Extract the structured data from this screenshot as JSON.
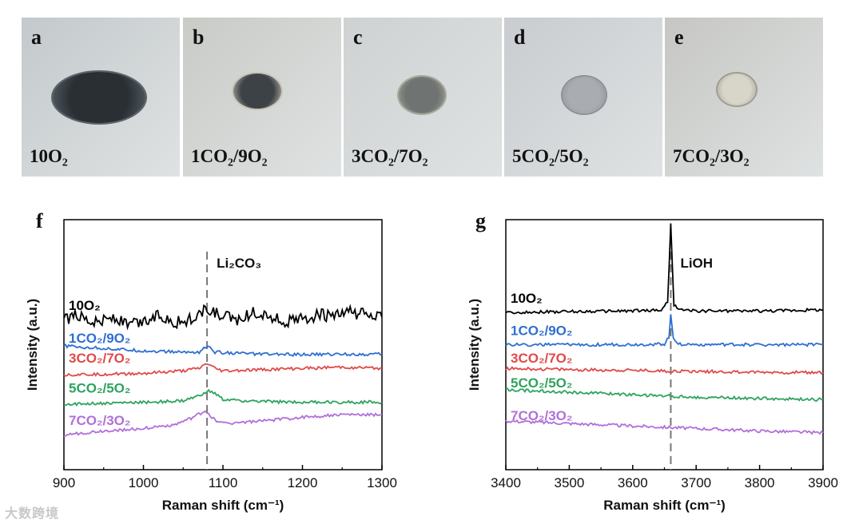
{
  "photos": [
    {
      "letter": "a",
      "condition": "10O₂",
      "bg": "#c3c9cc",
      "disc": "#2a2f33",
      "rim": "#58626a"
    },
    {
      "letter": "b",
      "condition": "1CO₂/9O₂",
      "bg": "#c8cbc6",
      "disc": "#3d4246",
      "rim": "#c9c6b8"
    },
    {
      "letter": "c",
      "condition": "3CO₂/7O₂",
      "bg": "#cfd2d2",
      "disc": "#6f7472",
      "rim": "#a8a99a"
    },
    {
      "letter": "d",
      "condition": "5CO₂/5O₂",
      "bg": "#c9ccd0",
      "disc": "#a9adb1",
      "rim": "#8c9196"
    },
    {
      "letter": "e",
      "condition": "7CO₂/3O₂",
      "bg": "#c6c7c4",
      "disc": "#d8d6c8",
      "rim": "#9e9d90"
    }
  ],
  "chart_data": [
    {
      "type": "line",
      "panel_label": "f",
      "xlabel": "Raman shift (cm⁻¹)",
      "ylabel": "Intensity (a.u.)",
      "xlim": [
        900,
        1300
      ],
      "xticks": [
        900,
        1000,
        1100,
        1200,
        1300
      ],
      "ylim": [
        0,
        10
      ],
      "reference_line": {
        "x": 1080,
        "label": "Li₂CO₃"
      },
      "series": [
        {
          "name": "10O₂",
          "color": "#000000",
          "baseline": 6.0,
          "points": [
            [
              900,
              6.0
            ],
            [
              920,
              6.2
            ],
            [
              940,
              5.9
            ],
            [
              960,
              6.1
            ],
            [
              980,
              5.8
            ],
            [
              1000,
              5.9
            ],
            [
              1020,
              6.2
            ],
            [
              1040,
              5.9
            ],
            [
              1060,
              6.0
            ],
            [
              1080,
              6.4
            ],
            [
              1100,
              6.1
            ],
            [
              1120,
              6.0
            ],
            [
              1140,
              6.3
            ],
            [
              1160,
              6.1
            ],
            [
              1180,
              5.9
            ],
            [
              1200,
              6.0
            ],
            [
              1220,
              6.2
            ],
            [
              1240,
              6.1
            ],
            [
              1260,
              6.3
            ],
            [
              1280,
              6.2
            ],
            [
              1300,
              6.1
            ]
          ]
        },
        {
          "name": "1CO₂/9O₂",
          "color": "#2f6fd1",
          "baseline": 4.7,
          "points": [
            [
              900,
              4.95
            ],
            [
              950,
              4.85
            ],
            [
              1000,
              4.75
            ],
            [
              1050,
              4.7
            ],
            [
              1070,
              4.7
            ],
            [
              1080,
              4.95
            ],
            [
              1090,
              4.7
            ],
            [
              1150,
              4.62
            ],
            [
              1200,
              4.6
            ],
            [
              1250,
              4.62
            ],
            [
              1300,
              4.62
            ]
          ]
        },
        {
          "name": "3CO₂/7O₂",
          "color": "#e04a4a",
          "baseline": 3.9,
          "points": [
            [
              900,
              3.8
            ],
            [
              950,
              3.82
            ],
            [
              1000,
              3.85
            ],
            [
              1050,
              3.95
            ],
            [
              1070,
              4.05
            ],
            [
              1080,
              4.25
            ],
            [
              1090,
              4.05
            ],
            [
              1100,
              3.95
            ],
            [
              1150,
              4.0
            ],
            [
              1200,
              4.05
            ],
            [
              1250,
              4.1
            ],
            [
              1300,
              4.05
            ]
          ]
        },
        {
          "name": "5CO₂/5O₂",
          "color": "#2ea35e",
          "baseline": 2.7,
          "points": [
            [
              900,
              2.62
            ],
            [
              950,
              2.65
            ],
            [
              1000,
              2.7
            ],
            [
              1050,
              2.75
            ],
            [
              1070,
              2.95
            ],
            [
              1080,
              3.15
            ],
            [
              1090,
              3.05
            ],
            [
              1100,
              2.8
            ],
            [
              1150,
              2.72
            ],
            [
              1200,
              2.7
            ],
            [
              1250,
              2.7
            ],
            [
              1300,
              2.7
            ]
          ]
        },
        {
          "name": "7CO₂/3O₂",
          "color": "#b070d8",
          "baseline": 1.4,
          "points": [
            [
              900,
              1.38
            ],
            [
              950,
              1.55
            ],
            [
              1000,
              1.65
            ],
            [
              1040,
              1.8
            ],
            [
              1060,
              2.05
            ],
            [
              1078,
              2.35
            ],
            [
              1090,
              2.0
            ],
            [
              1100,
              1.85
            ],
            [
              1150,
              1.95
            ],
            [
              1200,
              2.1
            ],
            [
              1250,
              2.2
            ],
            [
              1300,
              2.2
            ]
          ]
        }
      ]
    },
    {
      "type": "line",
      "panel_label": "g",
      "xlabel": "Raman shift (cm⁻¹)",
      "ylabel": "Intensity (a.u.)",
      "xlim": [
        3400,
        3900
      ],
      "xticks": [
        3400,
        3500,
        3600,
        3700,
        3800,
        3900
      ],
      "ylim": [
        0,
        10
      ],
      "reference_line": {
        "x": 3660,
        "label": "LiOH"
      },
      "series": [
        {
          "name": "10O₂",
          "color": "#000000",
          "baseline": 6.3,
          "points": [
            [
              3400,
              6.3
            ],
            [
              3500,
              6.32
            ],
            [
              3600,
              6.35
            ],
            [
              3645,
              6.38
            ],
            [
              3655,
              6.7
            ],
            [
              3660,
              9.8
            ],
            [
              3665,
              6.6
            ],
            [
              3675,
              6.38
            ],
            [
              3700,
              6.35
            ],
            [
              3800,
              6.35
            ],
            [
              3900,
              6.4
            ]
          ]
        },
        {
          "name": "1CO₂/9O₂",
          "color": "#2f6fd1",
          "baseline": 5.0,
          "points": [
            [
              3400,
              5.0
            ],
            [
              3500,
              5.0
            ],
            [
              3600,
              5.0
            ],
            [
              3650,
              5.02
            ],
            [
              3657,
              5.3
            ],
            [
              3660,
              6.2
            ],
            [
              3664,
              5.3
            ],
            [
              3672,
              5.02
            ],
            [
              3700,
              5.0
            ],
            [
              3800,
              5.0
            ],
            [
              3900,
              5.0
            ]
          ]
        },
        {
          "name": "3CO₂/7O₂",
          "color": "#e04a4a",
          "baseline": 3.9,
          "points": [
            [
              3400,
              4.05
            ],
            [
              3500,
              4.0
            ],
            [
              3600,
              3.97
            ],
            [
              3700,
              3.93
            ],
            [
              3800,
              3.9
            ],
            [
              3900,
              3.88
            ]
          ]
        },
        {
          "name": "5CO₂/5O₂",
          "color": "#2ea35e",
          "baseline": 2.9,
          "points": [
            [
              3400,
              3.2
            ],
            [
              3500,
              3.1
            ],
            [
              3600,
              3.0
            ],
            [
              3700,
              2.9
            ],
            [
              3800,
              2.85
            ],
            [
              3900,
              2.8
            ]
          ]
        },
        {
          "name": "7CO₂/3O₂",
          "color": "#b070d8",
          "baseline": 1.6,
          "points": [
            [
              3400,
              1.95
            ],
            [
              3500,
              1.85
            ],
            [
              3600,
              1.75
            ],
            [
              3700,
              1.65
            ],
            [
              3800,
              1.55
            ],
            [
              3900,
              1.48
            ]
          ]
        }
      ]
    }
  ],
  "watermark": "大数跨境"
}
